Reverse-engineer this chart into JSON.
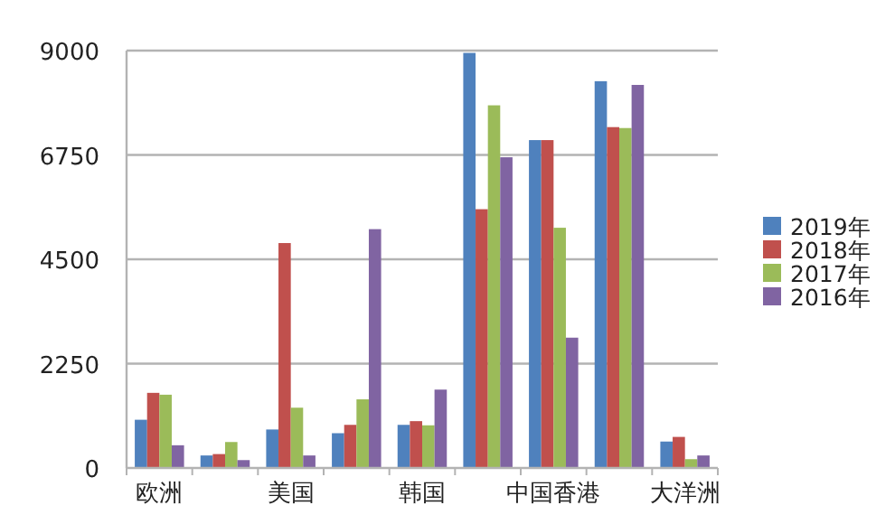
{
  "chart_data": {
    "type": "bar",
    "categories": [
      "欧洲",
      null,
      "美国",
      null,
      "韩国",
      null,
      "中国香港",
      null,
      "大洋洲"
    ],
    "series": [
      {
        "name": "2019年",
        "color": "#4f81bd",
        "values": [
          1040,
          270,
          830,
          750,
          930,
          8950,
          7070,
          8340,
          570
        ]
      },
      {
        "name": "2018年",
        "color": "#c0504d",
        "values": [
          1620,
          300,
          4850,
          930,
          1010,
          5580,
          7070,
          7350,
          670
        ]
      },
      {
        "name": "2017年",
        "color": "#9bbb59",
        "values": [
          1580,
          560,
          1300,
          1480,
          920,
          7820,
          5180,
          7330,
          190
        ]
      },
      {
        "name": "2016年",
        "color": "#8064a2",
        "values": [
          490,
          170,
          270,
          5150,
          1690,
          6700,
          2810,
          8260,
          270
        ]
      }
    ],
    "ylim": [
      0,
      9000
    ],
    "yticks": [
      0,
      2250,
      4500,
      6750,
      9000
    ],
    "grid": "y",
    "legend": "right"
  }
}
